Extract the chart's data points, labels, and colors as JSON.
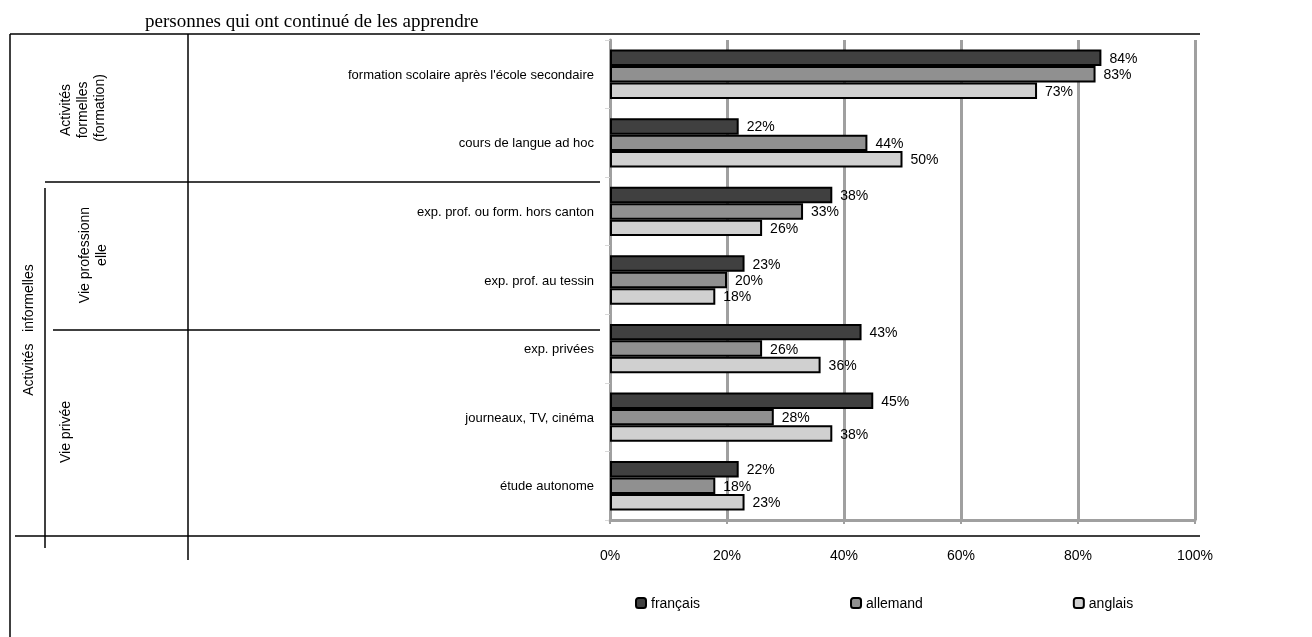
{
  "chart_data": {
    "type": "bar",
    "orientation": "horizontal",
    "title": "personnes qui ont continué de les apprendre",
    "categories": [
      "formation scolaire après l'école secondaire",
      "cours de langue ad hoc",
      "exp. prof. ou form. hors canton",
      "exp. prof. au tessin",
      "exp. privées",
      "journeaux, TV, cinéma",
      "étude autonome"
    ],
    "series": [
      {
        "name": "français",
        "color": "#404040",
        "values": [
          84,
          22,
          38,
          23,
          43,
          45,
          22
        ],
        "value_labels": [
          "84%",
          "22%",
          "38%",
          "23%",
          "43%",
          "45%",
          "22%"
        ]
      },
      {
        "name": "allemand",
        "color": "#909090",
        "values": [
          83,
          44,
          33,
          20,
          26,
          28,
          18
        ],
        "value_labels": [
          "83%",
          "44%",
          "33%",
          "20%",
          "26%",
          "28%",
          "18%"
        ]
      },
      {
        "name": "anglais",
        "color": "#d0d0d0",
        "values": [
          73,
          50,
          26,
          18,
          36,
          38,
          23
        ],
        "value_labels": [
          "73%",
          "50%",
          "26%",
          "18%",
          "36%",
          "38%",
          "23%"
        ]
      }
    ],
    "xlim": [
      0,
      100
    ],
    "xticks": [
      {
        "value": 0,
        "label": "0%"
      },
      {
        "value": 20,
        "label": "20%"
      },
      {
        "value": 40,
        "label": "40%"
      },
      {
        "value": 60,
        "label": "60%"
      },
      {
        "value": 80,
        "label": "80%"
      },
      {
        "value": 100,
        "label": "100%"
      }
    ],
    "grid": "x",
    "legend": "bottom",
    "annotations": [
      "Activités formelles (formation)",
      "Activités   informelles",
      "Vie professionnelle",
      "Vie privée"
    ]
  }
}
